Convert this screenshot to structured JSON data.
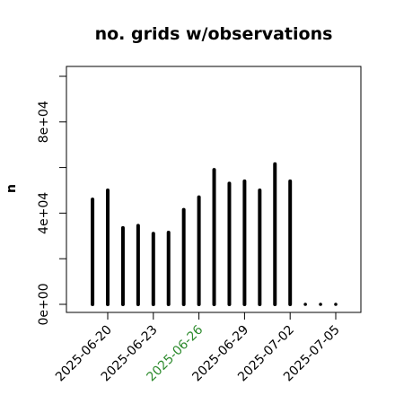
{
  "chart_data": {
    "type": "bar",
    "title": "no. grids w/observations",
    "ylabel": "n",
    "xlabel": "",
    "ylim": [
      0,
      102000
    ],
    "y_ticks": [
      0,
      40000,
      80000
    ],
    "y_tick_labels": [
      "0e+00",
      "4e+04",
      "8e+04"
    ],
    "x_ticks": [
      "2025-06-20",
      "2025-06-23",
      "2025-06-26",
      "2025-06-29",
      "2025-07-02",
      "2025-07-05"
    ],
    "x_tick_highlight": "2025-06-26",
    "x_tick_highlight_color": "#2e8b2e",
    "bar_color": "#000000",
    "dates": [
      "2025-06-19",
      "2025-06-20",
      "2025-06-21",
      "2025-06-22",
      "2025-06-23",
      "2025-06-24",
      "2025-06-25",
      "2025-06-26",
      "2025-06-27",
      "2025-06-28",
      "2025-06-29",
      "2025-06-30",
      "2025-07-01",
      "2025-07-02",
      "2025-07-03",
      "2025-07-04",
      "2025-07-05"
    ],
    "values": [
      46000,
      50000,
      33500,
      34500,
      31000,
      31500,
      41500,
      47000,
      59000,
      53000,
      54000,
      50000,
      61500,
      54000,
      0,
      0,
      0
    ]
  }
}
